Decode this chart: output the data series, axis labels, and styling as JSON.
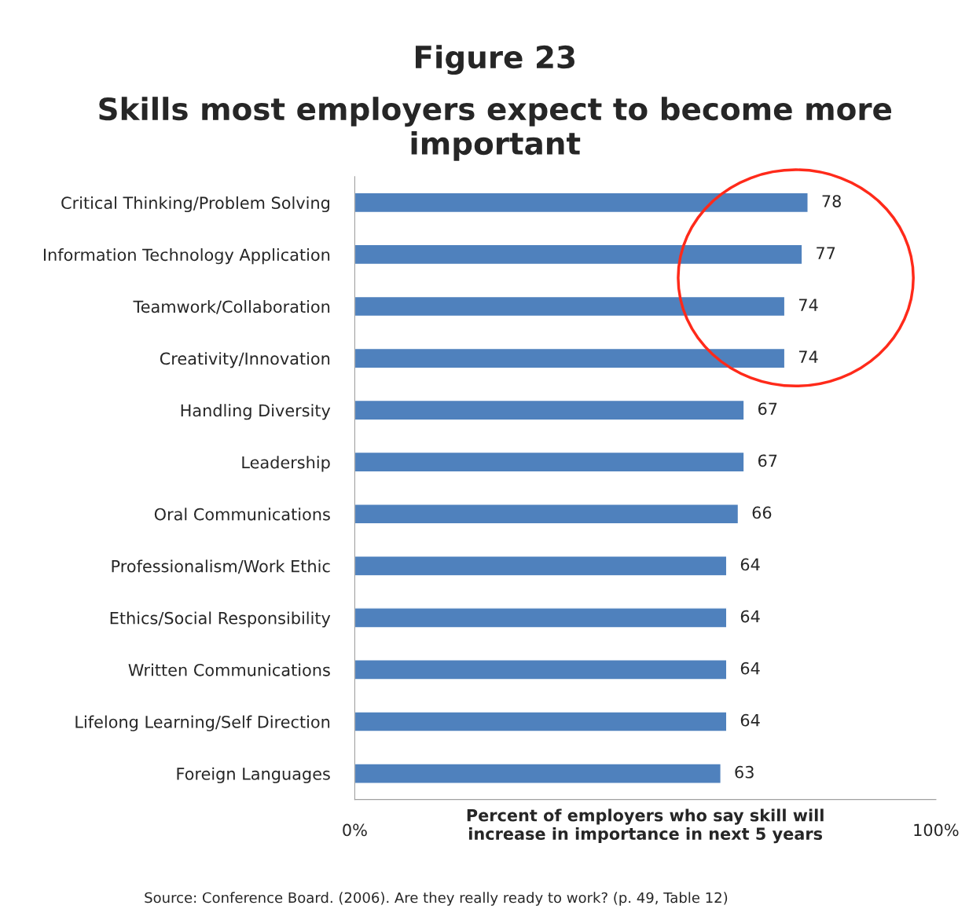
{
  "chart_data": {
    "type": "bar",
    "orientation": "horizontal",
    "title": "Figure 23",
    "subtitle": "Skills most employers expect to become more important",
    "categories": [
      "Critical Thinking/Problem Solving",
      "Information Technology Application",
      "Teamwork/Collaboration",
      "Creativity/Innovation",
      "Handling Diversity",
      "Leadership",
      "Oral Communications",
      "Professionalism/Work Ethic",
      "Ethics/Social Responsibility",
      "Written Communications",
      "Lifelong Learning/Self Direction",
      "Foreign Languages"
    ],
    "values": [
      78,
      77,
      74,
      74,
      67,
      67,
      66,
      64,
      64,
      64,
      64,
      63
    ],
    "color": "#4f81bd",
    "data_labels": true,
    "xlim": [
      0,
      100
    ],
    "xticks": [
      {
        "value": 0,
        "label": "0%"
      },
      {
        "value": 100,
        "label": "100%"
      }
    ],
    "xlabel": "Percent of employers who say skill will\nincrease in importance in next 5 years",
    "annotations": [
      "Source: Conference Board. (2006). Are they really ready to work? (p. 49, Table 12)"
    ],
    "grid": false,
    "legend": false
  }
}
